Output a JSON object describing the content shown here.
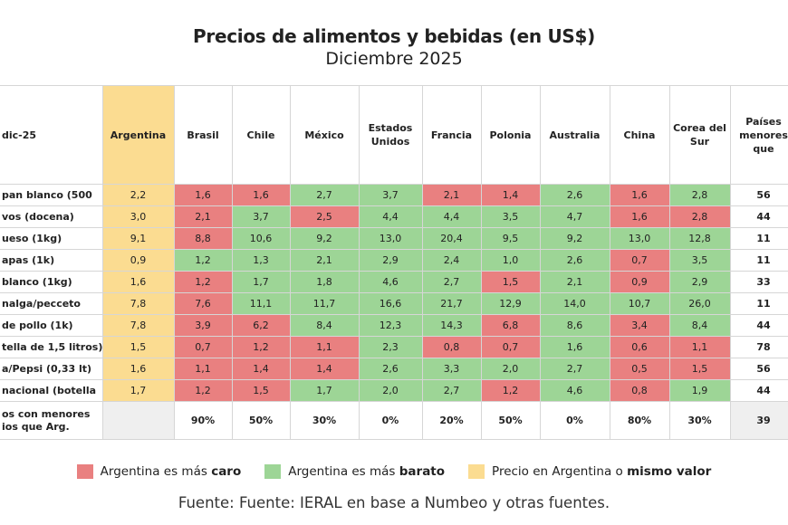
{
  "title": "Precios de alimentos y bebidas (en US$)",
  "subtitle": "Diciembre 2025",
  "colors": {
    "caro": "#e98080",
    "barato": "#9dd596",
    "argentina": "#fbdc91"
  },
  "chart_data": {
    "type": "table",
    "corner_label": "dic-25",
    "columns": [
      "Argentina",
      "Brasil",
      "Chile",
      "México",
      "Estados Unidos",
      "Francia",
      "Polonia",
      "Australia",
      "China",
      "Corea del Sur"
    ],
    "last_column_header": "Países menores que",
    "rows": [
      {
        "label": "pan blanco (500",
        "values": [
          "2,2",
          "1,6",
          "1,6",
          "2,7",
          "3,7",
          "2,1",
          "1,4",
          "2,6",
          "1,6",
          "2,8"
        ],
        "last": "56"
      },
      {
        "label": "vos (docena)",
        "values": [
          "3,0",
          "2,1",
          "3,7",
          "2,5",
          "4,4",
          "4,4",
          "3,5",
          "4,7",
          "1,6",
          "2,8"
        ],
        "last": "44"
      },
      {
        "label": "ueso (1kg)",
        "values": [
          "9,1",
          "8,8",
          "10,6",
          "9,2",
          "13,0",
          "20,4",
          "9,5",
          "9,2",
          "13,0",
          "12,8"
        ],
        "last": "11"
      },
      {
        "label": "apas (1k)",
        "values": [
          "0,9",
          "1,2",
          "1,3",
          "2,1",
          "2,9",
          "2,4",
          "1,0",
          "2,6",
          "0,7",
          "3,5"
        ],
        "last": "11"
      },
      {
        "label": " blanco (1kg)",
        "values": [
          "1,6",
          "1,2",
          "1,7",
          "1,8",
          "4,6",
          "2,7",
          "1,5",
          "2,1",
          "0,9",
          "2,9"
        ],
        "last": "33"
      },
      {
        "label": "nalga/pecceto",
        "values": [
          "7,8",
          "7,6",
          "11,1",
          "11,7",
          "16,6",
          "21,7",
          "12,9",
          "14,0",
          "10,7",
          "26,0"
        ],
        "last": "11"
      },
      {
        "label": "de pollo (1k)",
        "values": [
          "7,8",
          "3,9",
          "6,2",
          "8,4",
          "12,3",
          "14,3",
          "6,8",
          "8,6",
          "3,4",
          "8,4"
        ],
        "last": "44"
      },
      {
        "label": "tella de 1,5 litros)",
        "values": [
          "1,5",
          "0,7",
          "1,2",
          "1,1",
          "2,3",
          "0,8",
          "0,7",
          "1,6",
          "0,6",
          "1,1"
        ],
        "last": "78"
      },
      {
        "label": "a/Pepsi (0,33 lt)",
        "values": [
          "1,6",
          "1,1",
          "1,4",
          "1,4",
          "2,6",
          "3,3",
          "2,0",
          "2,7",
          "0,5",
          "1,5"
        ],
        "last": "56"
      },
      {
        "label": "nacional (botella",
        "values": [
          "1,7",
          "1,2",
          "1,5",
          "1,7",
          "2,0",
          "2,7",
          "1,2",
          "4,6",
          "0,8",
          "1,9"
        ],
        "last": "44"
      }
    ],
    "summary": {
      "label": "os con menores ios que Arg.",
      "values": [
        "",
        "90%",
        "50%",
        "30%",
        "0%",
        "20%",
        "50%",
        "0%",
        "80%",
        "30%"
      ],
      "last": "39"
    }
  },
  "legend": {
    "caro_prefix": "Argentina es más ",
    "caro_bold": "caro",
    "barato_prefix": "Argentina es más ",
    "barato_bold": "barato",
    "mismo_prefix": "Precio en Argentina o ",
    "mismo_bold": "mismo valor"
  },
  "source": "Fuente: Fuente: IERAL en base a Numbeo y otras fuentes."
}
